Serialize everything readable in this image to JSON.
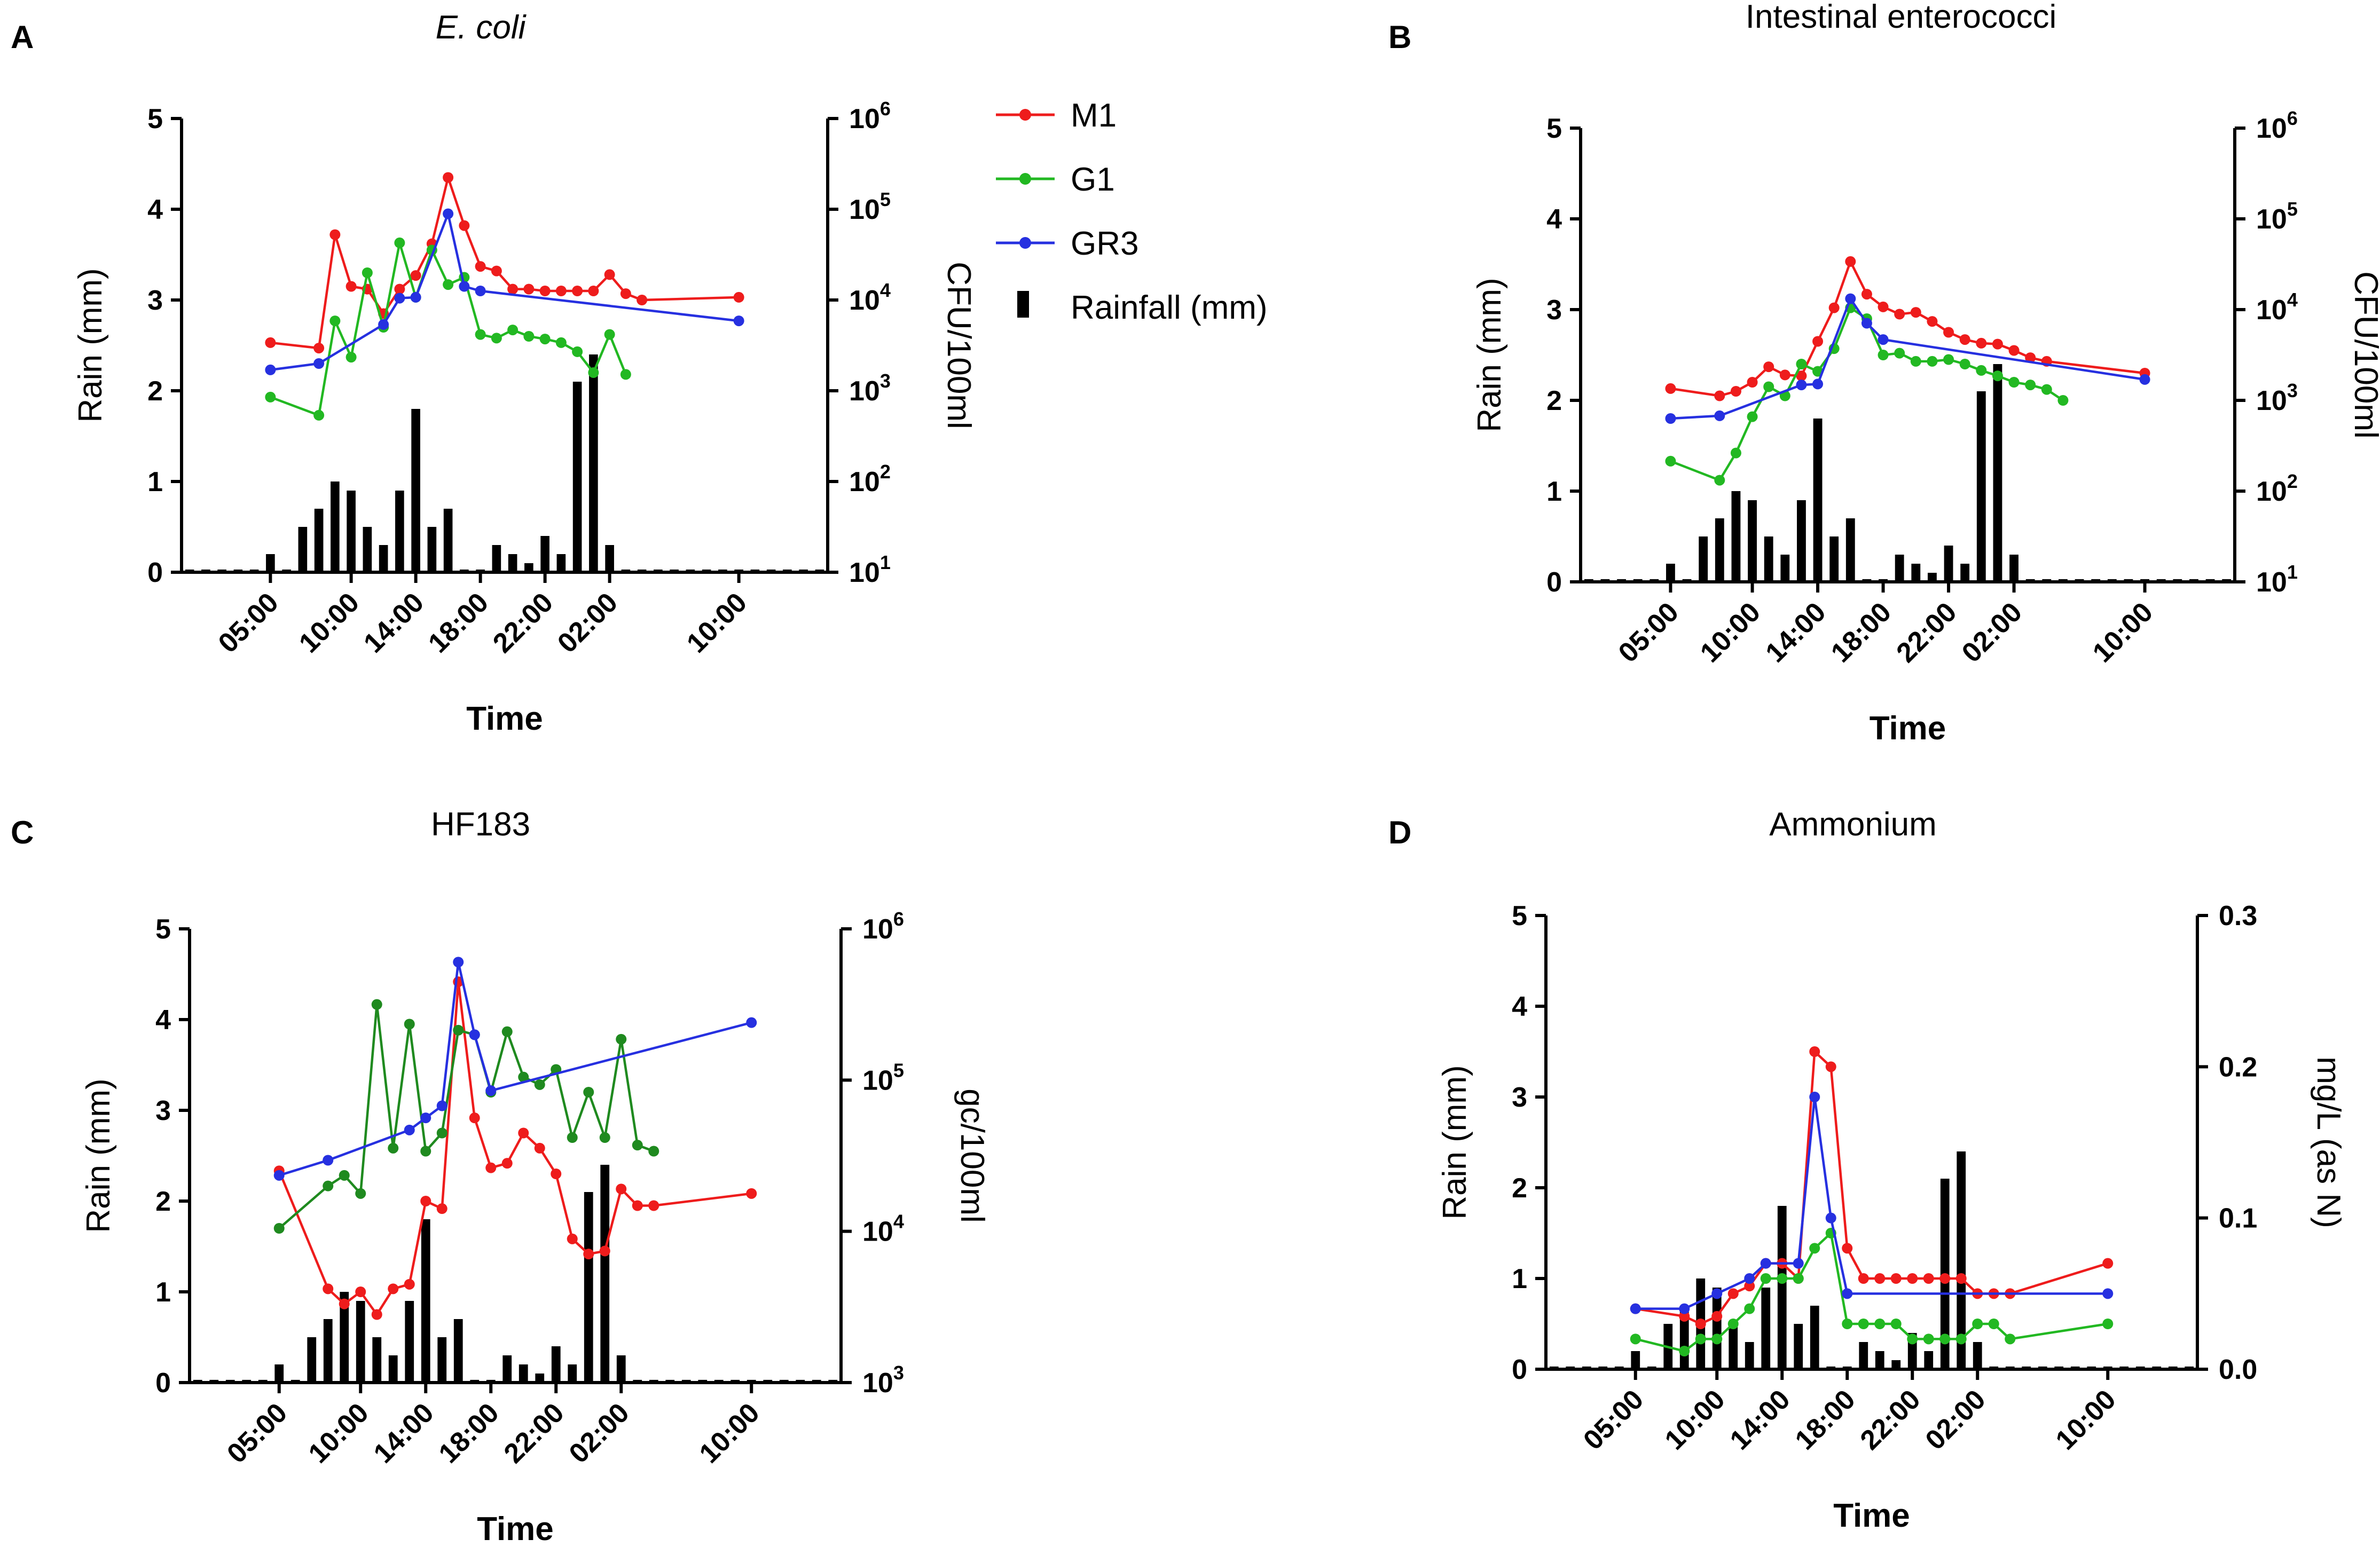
{
  "colors": {
    "M1": "#ee1c1c",
    "G1": "#22b822",
    "G1_dark": "#1f8a1f",
    "GR3": "#2630e0",
    "rain": "#000000"
  },
  "legend": [
    {
      "key": "M1",
      "label": "M1",
      "color": "#ee1c1c",
      "kind": "line"
    },
    {
      "key": "G1",
      "label": "G1",
      "color": "#22b822",
      "kind": "line"
    },
    {
      "key": "GR3",
      "label": "GR3",
      "color": "#2630e0",
      "kind": "line"
    },
    {
      "key": "rain",
      "label": "Rainfall (mm)",
      "color": "#000000",
      "kind": "bar"
    }
  ],
  "chart_data": [
    {
      "panel": "A",
      "type": "bar+line",
      "title": "E. coli",
      "title_italic": true,
      "xlabel": "Time",
      "ylabel": "Rain (mm)",
      "ylabel_right": "CFU/100ml",
      "x_ticks": [
        {
          "x": 5,
          "label": "05:00"
        },
        {
          "x": 10,
          "label": "10:00"
        },
        {
          "x": 14,
          "label": "14:00"
        },
        {
          "x": 18,
          "label": "18:00"
        },
        {
          "x": 22,
          "label": "22:00"
        },
        {
          "x": 26,
          "label": "02:00"
        },
        {
          "x": 34,
          "label": "10:00"
        }
      ],
      "xlim": [
        -0.5,
        39.5
      ],
      "ylim": [
        0,
        5
      ],
      "y_ticks": [
        0,
        1,
        2,
        3,
        4,
        5
      ],
      "right_scale": "log",
      "right_lim": [
        1,
        6
      ],
      "right_ticks": [
        {
          "v": 1,
          "base": "10",
          "exp": "1"
        },
        {
          "v": 2,
          "base": "10",
          "exp": "2"
        },
        {
          "v": 3,
          "base": "10",
          "exp": "3"
        },
        {
          "v": 4,
          "base": "10",
          "exp": "4"
        },
        {
          "v": 5,
          "base": "10",
          "exp": "5"
        },
        {
          "v": 6,
          "base": "10",
          "exp": "6"
        }
      ],
      "rain": {
        "x": [
          0,
          1,
          2,
          3,
          4,
          5,
          6,
          7,
          8,
          9,
          10,
          11,
          12,
          13,
          14,
          15,
          16,
          17,
          18,
          19,
          20,
          21,
          22,
          23,
          24,
          25,
          26,
          27,
          28,
          29,
          30,
          31,
          32,
          33,
          34,
          35,
          36,
          37,
          38,
          39
        ],
        "values": [
          0.03,
          0.03,
          0.03,
          0.03,
          0.03,
          0.2,
          0.03,
          0.5,
          0.7,
          1.0,
          0.9,
          0.5,
          0.3,
          0.9,
          1.8,
          0.5,
          0.7,
          0.03,
          0.03,
          0.3,
          0.2,
          0.1,
          0.4,
          0.2,
          2.1,
          2.4,
          0.3,
          0.03,
          0.03,
          0.03,
          0.03,
          0.03,
          0.03,
          0.03,
          0.03,
          0.03,
          0.03,
          0.03,
          0.03,
          0.03
        ]
      },
      "series": [
        {
          "name": "M1",
          "x": [
            5,
            8,
            9,
            10,
            11,
            12,
            13,
            14,
            15,
            16,
            17,
            18,
            19,
            20,
            21,
            22,
            23,
            24,
            25,
            26,
            27,
            28,
            34
          ],
          "values": [
            3.53,
            3.47,
            4.72,
            4.15,
            4.12,
            3.85,
            4.12,
            4.27,
            4.62,
            5.35,
            4.82,
            4.37,
            4.32,
            4.12,
            4.12,
            4.1,
            4.1,
            4.1,
            4.1,
            4.28,
            4.07,
            4.0,
            4.03
          ]
        },
        {
          "name": "G1",
          "x": [
            5,
            8,
            9,
            10,
            11,
            12,
            13,
            14,
            15,
            16,
            17,
            18,
            19,
            20,
            21,
            22,
            23,
            24,
            25,
            26,
            27
          ],
          "values": [
            2.93,
            2.73,
            3.77,
            3.37,
            4.3,
            3.7,
            4.63,
            4.03,
            4.55,
            4.17,
            4.25,
            3.62,
            3.58,
            3.67,
            3.6,
            3.57,
            3.53,
            3.43,
            3.2,
            3.62,
            3.18
          ]
        },
        {
          "name": "GR3",
          "x": [
            5,
            8,
            12,
            13,
            14,
            16,
            17,
            18,
            34
          ],
          "values": [
            3.23,
            3.3,
            3.73,
            4.02,
            4.03,
            4.95,
            4.15,
            4.1,
            3.77
          ]
        }
      ]
    },
    {
      "panel": "B",
      "type": "bar+line",
      "title": "Intestinal enterococci",
      "title_italic": false,
      "xlabel": "Time",
      "ylabel": "Rain (mm)",
      "ylabel_right": "CFU/100ml",
      "x_ticks": [
        {
          "x": 5,
          "label": "05:00"
        },
        {
          "x": 10,
          "label": "10:00"
        },
        {
          "x": 14,
          "label": "14:00"
        },
        {
          "x": 18,
          "label": "18:00"
        },
        {
          "x": 22,
          "label": "22:00"
        },
        {
          "x": 26,
          "label": "02:00"
        },
        {
          "x": 34,
          "label": "10:00"
        }
      ],
      "xlim": [
        -0.5,
        39.5
      ],
      "ylim": [
        0,
        5
      ],
      "y_ticks": [
        0,
        1,
        2,
        3,
        4,
        5
      ],
      "right_scale": "log",
      "right_lim": [
        1,
        6
      ],
      "right_ticks": [
        {
          "v": 1,
          "base": "10",
          "exp": "1"
        },
        {
          "v": 2,
          "base": "10",
          "exp": "2"
        },
        {
          "v": 3,
          "base": "10",
          "exp": "3"
        },
        {
          "v": 4,
          "base": "10",
          "exp": "4"
        },
        {
          "v": 5,
          "base": "10",
          "exp": "5"
        },
        {
          "v": 6,
          "base": "10",
          "exp": "6"
        }
      ],
      "rain": {
        "x": [
          0,
          1,
          2,
          3,
          4,
          5,
          6,
          7,
          8,
          9,
          10,
          11,
          12,
          13,
          14,
          15,
          16,
          17,
          18,
          19,
          20,
          21,
          22,
          23,
          24,
          25,
          26,
          27,
          28,
          29,
          30,
          31,
          32,
          33,
          34,
          35,
          36,
          37,
          38,
          39
        ],
        "values": [
          0.03,
          0.03,
          0.03,
          0.03,
          0.03,
          0.2,
          0.03,
          0.5,
          0.7,
          1.0,
          0.9,
          0.5,
          0.3,
          0.9,
          1.8,
          0.5,
          0.7,
          0.03,
          0.03,
          0.3,
          0.2,
          0.1,
          0.4,
          0.2,
          2.1,
          2.4,
          0.3,
          0.03,
          0.03,
          0.03,
          0.03,
          0.03,
          0.03,
          0.03,
          0.03,
          0.03,
          0.03,
          0.03,
          0.03,
          0.03
        ]
      },
      "series": [
        {
          "name": "M1",
          "x": [
            5,
            8,
            9,
            10,
            11,
            12,
            13,
            14,
            15,
            16,
            17,
            18,
            19,
            20,
            21,
            22,
            23,
            24,
            25,
            26,
            27,
            28,
            34
          ],
          "values": [
            3.13,
            3.05,
            3.1,
            3.2,
            3.37,
            3.28,
            3.27,
            3.65,
            4.02,
            4.53,
            4.17,
            4.03,
            3.95,
            3.97,
            3.87,
            3.75,
            3.67,
            3.63,
            3.62,
            3.55,
            3.47,
            3.43,
            3.3
          ]
        },
        {
          "name": "G1",
          "x": [
            5,
            8,
            9,
            10,
            11,
            12,
            13,
            14,
            15,
            16,
            17,
            18,
            19,
            20,
            21,
            22,
            23,
            24,
            25,
            26,
            27,
            28,
            29
          ],
          "values": [
            2.33,
            2.12,
            2.42,
            2.82,
            3.15,
            3.05,
            3.4,
            3.32,
            3.57,
            4.02,
            3.9,
            3.5,
            3.52,
            3.43,
            3.43,
            3.45,
            3.4,
            3.33,
            3.27,
            3.2,
            3.17,
            3.12,
            3.0
          ]
        },
        {
          "name": "GR3",
          "x": [
            5,
            8,
            13,
            14,
            16,
            17,
            18,
            34
          ],
          "values": [
            2.8,
            2.83,
            3.17,
            3.18,
            4.12,
            3.85,
            3.67,
            3.23
          ]
        }
      ]
    },
    {
      "panel": "C",
      "type": "bar+line",
      "title": "HF183",
      "title_italic": false,
      "xlabel": "Time",
      "ylabel": "Rain (mm)",
      "ylabel_right": "gc/100ml",
      "x_ticks": [
        {
          "x": 5,
          "label": "05:00"
        },
        {
          "x": 10,
          "label": "10:00"
        },
        {
          "x": 14,
          "label": "14:00"
        },
        {
          "x": 18,
          "label": "18:00"
        },
        {
          "x": 22,
          "label": "22:00"
        },
        {
          "x": 26,
          "label": "02:00"
        },
        {
          "x": 34,
          "label": "10:00"
        }
      ],
      "xlim": [
        -0.5,
        39.5
      ],
      "ylim": [
        0,
        5
      ],
      "y_ticks": [
        0,
        1,
        2,
        3,
        4,
        5
      ],
      "right_scale": "log",
      "right_lim": [
        3,
        6
      ],
      "right_ticks": [
        {
          "v": 3,
          "base": "10",
          "exp": "3"
        },
        {
          "v": 4,
          "base": "10",
          "exp": "4"
        },
        {
          "v": 5,
          "base": "10",
          "exp": "5"
        },
        {
          "v": 6,
          "base": "10",
          "exp": "6"
        }
      ],
      "rain": {
        "x": [
          0,
          1,
          2,
          3,
          4,
          5,
          6,
          7,
          8,
          9,
          10,
          11,
          12,
          13,
          14,
          15,
          16,
          17,
          18,
          19,
          20,
          21,
          22,
          23,
          24,
          25,
          26,
          27,
          28,
          29,
          30,
          31,
          32,
          33,
          34,
          35,
          36,
          37,
          38,
          39
        ],
        "values": [
          0.03,
          0.03,
          0.03,
          0.03,
          0.03,
          0.2,
          0.03,
          0.5,
          0.7,
          1.0,
          0.9,
          0.5,
          0.3,
          0.9,
          1.8,
          0.5,
          0.7,
          0.03,
          0.03,
          0.3,
          0.2,
          0.1,
          0.4,
          0.2,
          2.1,
          2.4,
          0.3,
          0.03,
          0.03,
          0.03,
          0.03,
          0.03,
          0.03,
          0.03,
          0.03,
          0.03,
          0.03,
          0.03,
          0.03,
          0.03
        ]
      },
      "series": [
        {
          "name": "M1",
          "x": [
            5,
            8,
            9,
            10,
            11,
            12,
            13,
            14,
            15,
            16,
            17,
            18,
            19,
            20,
            21,
            22,
            23,
            24,
            25,
            26,
            27,
            28,
            34
          ],
          "values": [
            4.4,
            3.62,
            3.52,
            3.6,
            3.45,
            3.62,
            3.65,
            4.2,
            4.15,
            5.65,
            4.75,
            4.42,
            4.45,
            4.65,
            4.55,
            4.38,
            3.95,
            3.85,
            3.87,
            4.28,
            4.17,
            4.17,
            4.25
          ]
        },
        {
          "name": "G1",
          "x": [
            5,
            8,
            9,
            10,
            11,
            12,
            13,
            14,
            15,
            16,
            17,
            18,
            19,
            20,
            21,
            22,
            23,
            24,
            25,
            26,
            27,
            28
          ],
          "values": [
            4.02,
            4.3,
            4.37,
            4.25,
            5.5,
            4.55,
            5.37,
            4.53,
            4.65,
            5.33,
            5.3,
            4.92,
            5.32,
            5.02,
            4.97,
            5.07,
            4.62,
            4.92,
            4.62,
            5.27,
            4.57,
            4.53
          ]
        },
        {
          "name": "GR3",
          "x": [
            5,
            8,
            13,
            14,
            15,
            16,
            17,
            18,
            34
          ],
          "values": [
            4.37,
            4.47,
            4.67,
            4.75,
            4.83,
            5.78,
            5.3,
            4.93,
            5.38
          ]
        }
      ]
    },
    {
      "panel": "D",
      "type": "bar+line",
      "title": "Ammonium",
      "title_italic": false,
      "xlabel": "Time",
      "ylabel": "Rain (mm)",
      "ylabel_right": "mg/L (as N)",
      "x_ticks": [
        {
          "x": 5,
          "label": "05:00"
        },
        {
          "x": 10,
          "label": "10:00"
        },
        {
          "x": 14,
          "label": "14:00"
        },
        {
          "x": 18,
          "label": "18:00"
        },
        {
          "x": 22,
          "label": "22:00"
        },
        {
          "x": 26,
          "label": "02:00"
        },
        {
          "x": 34,
          "label": "10:00"
        }
      ],
      "xlim": [
        -0.5,
        39.5
      ],
      "ylim": [
        0,
        5
      ],
      "y_ticks": [
        0,
        1,
        2,
        3,
        4,
        5
      ],
      "right_scale": "linear",
      "right_lim": [
        0,
        0.3
      ],
      "right_ticks": [
        {
          "v": 0.0,
          "label": "0.0"
        },
        {
          "v": 0.1,
          "label": "0.1"
        },
        {
          "v": 0.2,
          "label": "0.2"
        },
        {
          "v": 0.3,
          "label": "0.3"
        }
      ],
      "rain": {
        "x": [
          0,
          1,
          2,
          3,
          4,
          5,
          6,
          7,
          8,
          9,
          10,
          11,
          12,
          13,
          14,
          15,
          16,
          17,
          18,
          19,
          20,
          21,
          22,
          23,
          24,
          25,
          26,
          27,
          28,
          29,
          30,
          31,
          32,
          33,
          34,
          35,
          36,
          37,
          38,
          39
        ],
        "values": [
          0.03,
          0.03,
          0.03,
          0.03,
          0.03,
          0.2,
          0.03,
          0.5,
          0.7,
          1.0,
          0.9,
          0.5,
          0.3,
          0.9,
          1.8,
          0.5,
          0.7,
          0.03,
          0.03,
          0.3,
          0.2,
          0.1,
          0.4,
          0.2,
          2.1,
          2.4,
          0.3,
          0.03,
          0.03,
          0.03,
          0.03,
          0.03,
          0.03,
          0.03,
          0.03,
          0.03,
          0.03,
          0.03,
          0.03,
          0.03
        ]
      },
      "series": [
        {
          "name": "M1",
          "x": [
            5,
            8,
            9,
            10,
            11,
            12,
            13,
            14,
            15,
            16,
            17,
            18,
            19,
            20,
            21,
            22,
            23,
            24,
            25,
            26,
            27,
            28,
            34
          ],
          "values": [
            0.04,
            0.035,
            0.03,
            0.035,
            0.05,
            0.055,
            0.07,
            0.07,
            0.06,
            0.21,
            0.2,
            0.08,
            0.06,
            0.06,
            0.06,
            0.06,
            0.06,
            0.06,
            0.06,
            0.05,
            0.05,
            0.05,
            0.07
          ]
        },
        {
          "name": "G1",
          "x": [
            5,
            8,
            9,
            10,
            11,
            12,
            13,
            14,
            15,
            16,
            17,
            18,
            19,
            20,
            21,
            22,
            23,
            24,
            25,
            26,
            27,
            28,
            34
          ],
          "values": [
            0.02,
            0.012,
            0.02,
            0.02,
            0.03,
            0.04,
            0.06,
            0.06,
            0.06,
            0.08,
            0.09,
            0.03,
            0.03,
            0.03,
            0.03,
            0.02,
            0.02,
            0.02,
            0.02,
            0.03,
            0.03,
            0.02,
            0.03
          ]
        },
        {
          "name": "GR3",
          "x": [
            5,
            8,
            10,
            12,
            13,
            15,
            16,
            17,
            18,
            34
          ],
          "values": [
            0.04,
            0.04,
            0.05,
            0.06,
            0.07,
            0.07,
            0.18,
            0.1,
            0.05,
            0.05
          ]
        }
      ]
    }
  ]
}
